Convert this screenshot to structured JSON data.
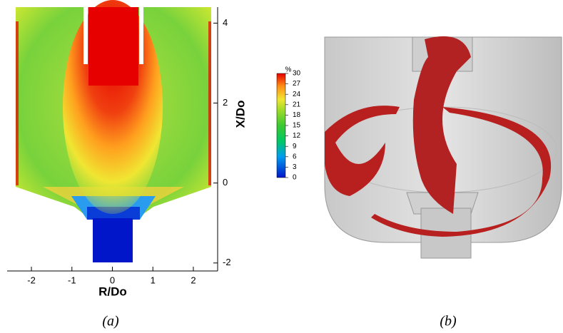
{
  "chart_data": {
    "type": "contour",
    "xlabel": "R/Do",
    "ylabel": "X/Do",
    "xlim": [
      -2.6,
      2.6
    ],
    "xticks": [
      -2,
      -1,
      0,
      1,
      2
    ],
    "ylim": [
      -2.2,
      4.4
    ],
    "yticks": [
      -2,
      0,
      2,
      4
    ],
    "colorbar": {
      "label": "%",
      "lim": [
        0,
        30
      ],
      "ticks": [
        0,
        3,
        6,
        9,
        12,
        15,
        18,
        21,
        24,
        27,
        30
      ]
    }
  },
  "captions": [
    "(a)",
    "(b)"
  ]
}
